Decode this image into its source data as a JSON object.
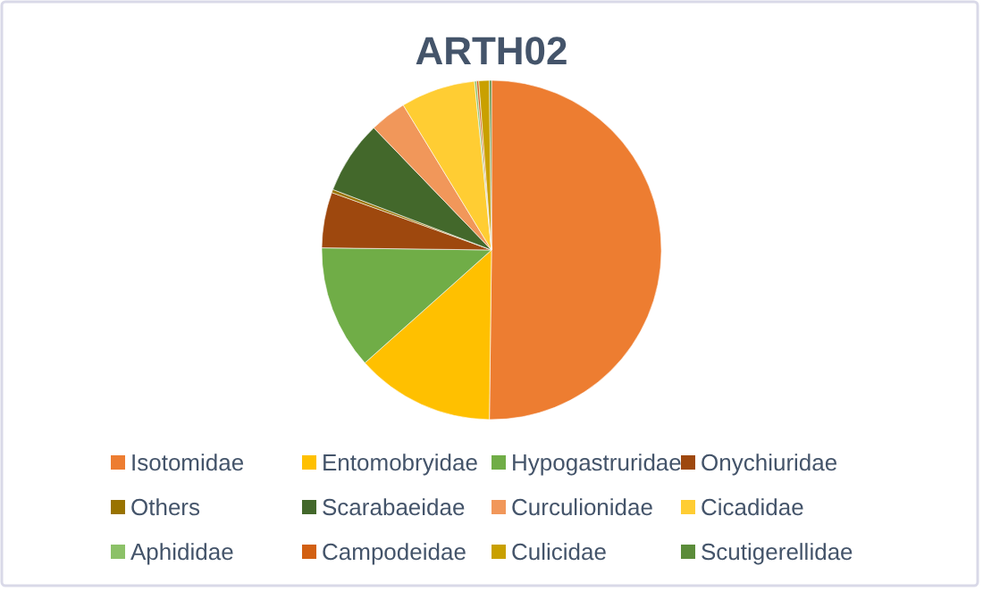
{
  "chart_data": {
    "type": "pie",
    "title": "ARTH02",
    "categories": [
      "Isotomidae",
      "Entomobryidae",
      "Hypogastruridae",
      "Onychiuridae",
      "Others",
      "Scarabaeidae",
      "Curculionidae",
      "Cicadidae",
      "Aphididae",
      "Campodeidae",
      "Culicidae",
      "Scutigerellidae"
    ],
    "values": [
      50.2,
      13.2,
      11.8,
      5.3,
      0.3,
      7,
      3.5,
      7.1,
      0.2,
      0.2,
      1,
      0.2
    ],
    "colors": [
      "#ed7d31",
      "#ffc000",
      "#70ad47",
      "#9e480e",
      "#997300",
      "#43682b",
      "#f1975a",
      "#ffcd33",
      "#8cc168",
      "#d26012",
      "#c9a000",
      "#5b8c3a"
    ],
    "legend": "bottom"
  }
}
